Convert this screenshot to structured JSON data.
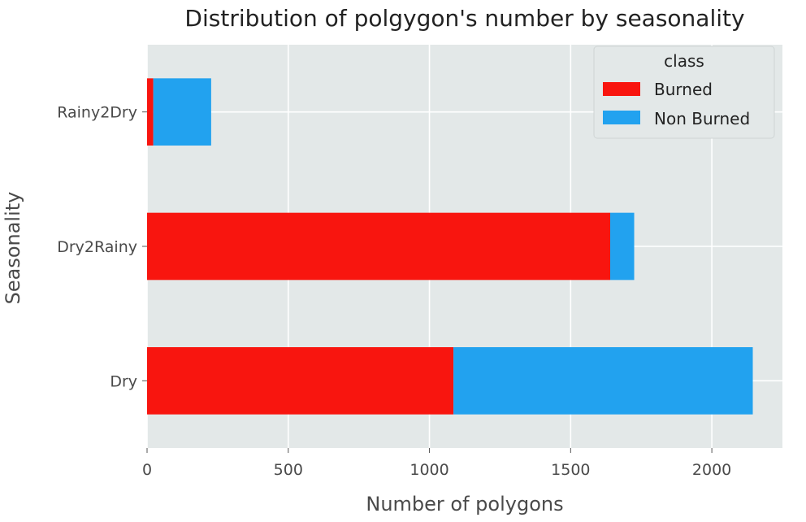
{
  "chart_data": {
    "type": "bar",
    "orientation": "horizontal",
    "stacked": true,
    "title": "Distribution of polgygon's number by seasonality",
    "xlabel": "Number of polygons",
    "ylabel": "Seasonality",
    "categories": [
      "Dry",
      "Dry2Rainy",
      "Rainy2Dry"
    ],
    "series": [
      {
        "name": "Burned",
        "color": "#f8150f",
        "values": [
          1085,
          1640,
          22
        ]
      },
      {
        "name": "Non Burned",
        "color": "#22a2ef",
        "values": [
          1060,
          85,
          205
        ]
      }
    ],
    "xlim": [
      0,
      2250
    ],
    "xticks": [
      0,
      500,
      1000,
      1500,
      2000
    ],
    "grid": true,
    "legend": {
      "title": "class",
      "placement": "top-right"
    },
    "colors": {
      "plot_background": "#e3e8e8",
      "grid": "#ffffff"
    }
  }
}
